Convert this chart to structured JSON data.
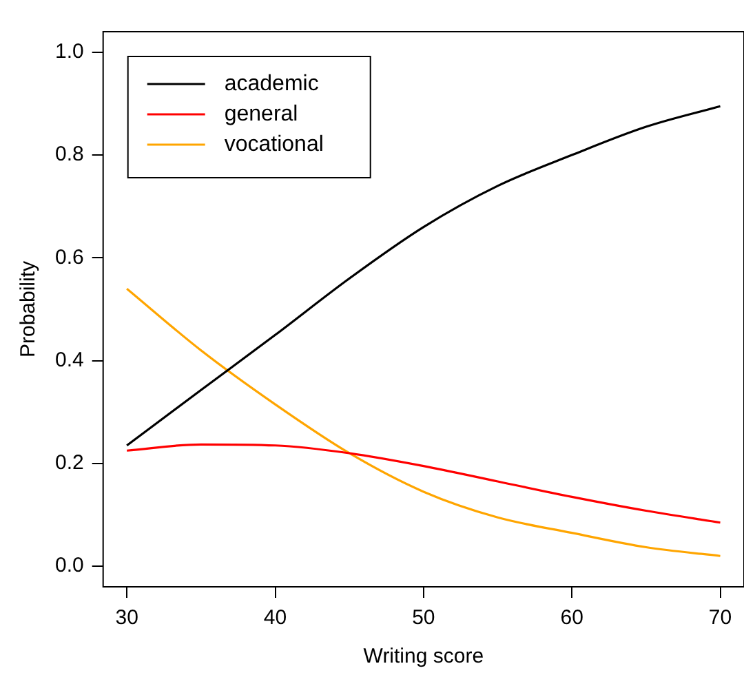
{
  "chart_data": {
    "type": "line",
    "xlabel": "Writing score",
    "ylabel": "Probability",
    "x": [
      30,
      35,
      40,
      45,
      50,
      55,
      60,
      65,
      70
    ],
    "series": [
      {
        "name": "academic",
        "color": "#000000",
        "values": [
          0.235,
          0.343,
          0.45,
          0.56,
          0.66,
          0.74,
          0.8,
          0.855,
          0.895
        ]
      },
      {
        "name": "general",
        "color": "#ff0000",
        "values": [
          0.225,
          0.237,
          0.235,
          0.22,
          0.195,
          0.165,
          0.135,
          0.108,
          0.085
        ]
      },
      {
        "name": "vocational",
        "color": "#ffa500",
        "values": [
          0.54,
          0.42,
          0.315,
          0.22,
          0.145,
          0.095,
          0.065,
          0.037,
          0.02
        ]
      }
    ],
    "xlim": [
      28.4,
      71.6
    ],
    "xticks": [
      30,
      40,
      50,
      60,
      70
    ],
    "ylim": [
      -0.04,
      1.04
    ],
    "yticks": [
      {
        "value": 0,
        "label": "0.0"
      },
      0.2,
      0.4,
      0.6,
      0.8,
      {
        "value": 1,
        "label": "1.0"
      }
    ],
    "grid": false,
    "legend": "top left",
    "marker": "none",
    "line_style": "solid"
  }
}
